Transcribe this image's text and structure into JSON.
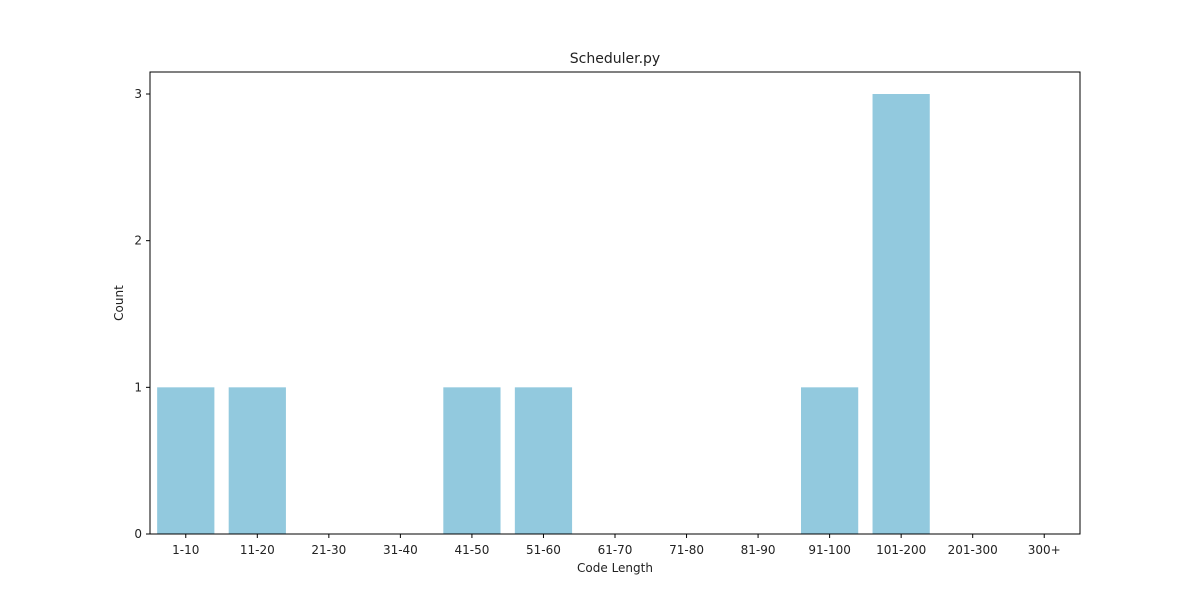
{
  "chart_data": {
    "type": "bar",
    "title": "Scheduler.py",
    "xlabel": "Code Length",
    "ylabel": "Count",
    "categories": [
      "1-10",
      "11-20",
      "21-30",
      "31-40",
      "41-50",
      "51-60",
      "61-70",
      "71-80",
      "81-90",
      "91-100",
      "101-200",
      "201-300",
      "300+"
    ],
    "values": [
      1,
      1,
      0,
      0,
      1,
      1,
      0,
      0,
      0,
      1,
      3,
      0,
      0
    ],
    "yticks": [
      0,
      1,
      2,
      3
    ],
    "ylim": [
      0,
      3.15
    ],
    "bar_color": "#92c9de",
    "grid": false,
    "legend": "none"
  }
}
